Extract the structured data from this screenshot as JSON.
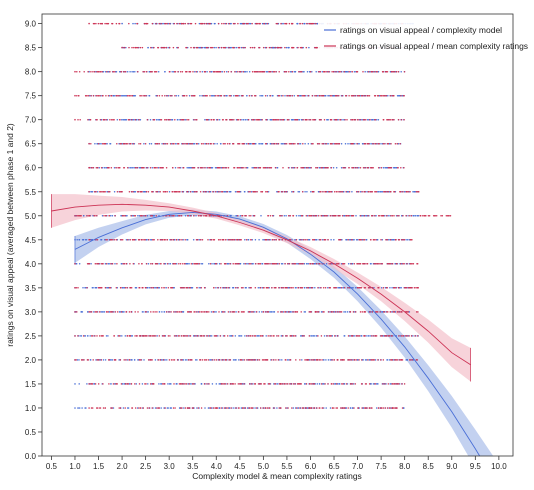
{
  "chart_data": {
    "type": "scatter",
    "xlabel": "Complexity model & mean complexity ratings",
    "ylabel": "ratings on visual appeal (averaged between phase 1 and 2)",
    "xlim": [
      0.3,
      10.3
    ],
    "ylim": [
      0.0,
      9.2
    ],
    "xticks": [
      "0.5",
      "1.0",
      "1.5",
      "2.0",
      "2.5",
      "3.0",
      "3.5",
      "4.0",
      "4.5",
      "5.0",
      "5.5",
      "6.0",
      "6.5",
      "7.0",
      "7.5",
      "8.0",
      "8.5",
      "9.0",
      "9.5",
      "10.0"
    ],
    "yticks": [
      "0.0",
      "0.5",
      "1.0",
      "1.5",
      "2.0",
      "2.5",
      "3.0",
      "3.5",
      "4.0",
      "4.5",
      "5.0",
      "5.5",
      "6.0",
      "6.5",
      "7.0",
      "7.5",
      "8.0",
      "8.5",
      "9.0"
    ],
    "grid": false,
    "legend_position": "top-right",
    "series": [
      {
        "name": "ratings on visual appeal / complexity model",
        "color": "#4a6fd6",
        "band_color": "#aabde9",
        "fit": {
          "x": [
            1.0,
            1.5,
            2.0,
            2.5,
            3.0,
            3.5,
            4.0,
            4.5,
            5.0,
            5.5,
            6.0,
            6.5,
            7.0,
            7.5,
            8.0,
            8.5,
            9.0,
            9.5,
            9.9
          ],
          "y": [
            4.3,
            4.55,
            4.75,
            4.92,
            5.03,
            5.07,
            5.03,
            4.93,
            4.76,
            4.52,
            4.2,
            3.83,
            3.37,
            2.85,
            2.27,
            1.62,
            0.92,
            0.15,
            -0.5
          ],
          "band_halfwidth": [
            0.28,
            0.2,
            0.14,
            0.1,
            0.07,
            0.06,
            0.06,
            0.06,
            0.07,
            0.08,
            0.1,
            0.12,
            0.15,
            0.18,
            0.22,
            0.27,
            0.33,
            0.4,
            0.47
          ]
        },
        "points": {
          "y_levels": [
            1.0,
            1.5,
            2.0,
            2.5,
            3.0,
            3.5,
            4.0,
            4.5,
            5.0,
            5.5,
            6.0,
            6.5,
            7.0,
            7.5,
            8.0,
            8.5,
            9.0
          ],
          "x_ranges": [
            [
              1.0,
              8.0
            ],
            [
              1.0,
              8.0
            ],
            [
              1.0,
              8.3
            ],
            [
              1.0,
              8.3
            ],
            [
              1.0,
              8.3
            ],
            [
              1.0,
              8.3
            ],
            [
              1.0,
              8.3
            ],
            [
              1.0,
              8.3
            ],
            [
              1.0,
              8.3
            ],
            [
              1.3,
              8.3
            ],
            [
              1.3,
              8.0
            ],
            [
              1.3,
              8.0
            ],
            [
              1.3,
              8.0
            ],
            [
              1.3,
              8.0
            ],
            [
              1.3,
              8.0
            ],
            [
              2.0,
              8.0
            ],
            [
              2.0,
              8.3
            ]
          ]
        }
      },
      {
        "name": "ratings on visual appeal / mean complexity ratings",
        "color": "#cc3355",
        "band_color": "#f3c0ca",
        "fit": {
          "x": [
            0.5,
            1.0,
            1.5,
            2.0,
            2.5,
            3.0,
            3.5,
            4.0,
            4.5,
            5.0,
            5.5,
            6.0,
            6.5,
            7.0,
            7.5,
            8.0,
            8.5,
            9.0,
            9.4
          ],
          "y": [
            5.1,
            5.18,
            5.22,
            5.24,
            5.22,
            5.18,
            5.1,
            5.0,
            4.86,
            4.7,
            4.5,
            4.27,
            4.0,
            3.7,
            3.37,
            3.0,
            2.6,
            2.15,
            1.9
          ],
          "band_halfwidth": [
            0.35,
            0.27,
            0.2,
            0.15,
            0.11,
            0.08,
            0.07,
            0.06,
            0.06,
            0.06,
            0.07,
            0.08,
            0.1,
            0.12,
            0.15,
            0.19,
            0.24,
            0.3,
            0.35
          ]
        },
        "points": {
          "y_levels": [
            1.0,
            1.5,
            2.0,
            2.5,
            3.0,
            3.5,
            4.0,
            4.5,
            5.0,
            5.5,
            6.0,
            6.5,
            7.0,
            7.5,
            8.0,
            8.5,
            9.0
          ],
          "x_ranges": [
            [
              1.3,
              8.0
            ],
            [
              1.3,
              8.0
            ],
            [
              1.0,
              8.3
            ],
            [
              1.0,
              8.3
            ],
            [
              1.0,
              8.3
            ],
            [
              1.0,
              8.3
            ],
            [
              1.0,
              8.3
            ],
            [
              1.3,
              8.3
            ],
            [
              1.0,
              9.0
            ],
            [
              1.3,
              8.3
            ],
            [
              1.3,
              8.0
            ],
            [
              1.3,
              8.0
            ],
            [
              1.0,
              8.0
            ],
            [
              1.0,
              8.0
            ],
            [
              1.0,
              8.0
            ],
            [
              2.0,
              8.0
            ],
            [
              1.3,
              8.0
            ]
          ]
        }
      }
    ]
  }
}
